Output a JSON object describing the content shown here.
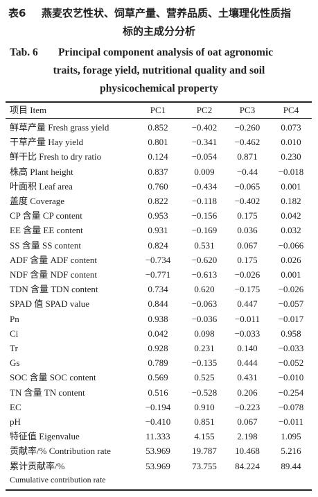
{
  "header": {
    "label_cn": "表6",
    "title_cn_lines": [
      "燕麦农艺性状、饲草产量、营养品质、土壤理化性质指",
      "标的主成分分析"
    ],
    "label_en": "Tab. 6",
    "title_en_lines": [
      "Principal component analysis of oat agronomic",
      "traits, forage yield, nutritional quality and soil",
      "physicochemical property"
    ]
  },
  "table": {
    "columns": [
      "项目 Item",
      "PC1",
      "PC2",
      "PC3",
      "PC4"
    ],
    "rows": [
      [
        "鲜草产量 Fresh grass yield",
        "0.852",
        "−0.402",
        "−0.260",
        "0.073"
      ],
      [
        "干草产量 Hay yield",
        "0.801",
        "−0.341",
        "−0.462",
        "0.010"
      ],
      [
        "鲜干比 Fresh to dry ratio",
        "0.124",
        "−0.054",
        "0.871",
        "0.230"
      ],
      [
        "株高 Plant height",
        "0.837",
        "0.009",
        "−0.44",
        "−0.018"
      ],
      [
        "叶面积 Leaf area",
        "0.760",
        "−0.434",
        "−0.065",
        "0.001"
      ],
      [
        "盖度 Coverage",
        "0.822",
        "−0.118",
        "−0.402",
        "0.182"
      ],
      [
        "CP 含量 CP content",
        "0.953",
        "−0.156",
        "0.175",
        "0.042"
      ],
      [
        "EE 含量 EE content",
        "0.931",
        "−0.169",
        "0.036",
        "0.032"
      ],
      [
        "SS 含量 SS content",
        "0.824",
        "0.531",
        "0.067",
        "−0.066"
      ],
      [
        "ADF 含量 ADF content",
        "−0.734",
        "−0.620",
        "0.175",
        "0.026"
      ],
      [
        "NDF 含量 NDF content",
        "−0.771",
        "−0.613",
        "−0.026",
        "0.001"
      ],
      [
        "TDN 含量 TDN content",
        "0.734",
        "0.620",
        "−0.175",
        "−0.026"
      ],
      [
        "SPAD 值 SPAD value",
        "0.844",
        "−0.063",
        "0.447",
        "−0.057"
      ],
      [
        "Pn",
        "0.938",
        "−0.036",
        "−0.011",
        "−0.017"
      ],
      [
        "Ci",
        "0.042",
        "0.098",
        "−0.033",
        "0.958"
      ],
      [
        "Tr",
        "0.928",
        "0.231",
        "0.140",
        "−0.033"
      ],
      [
        "Gs",
        "0.789",
        "−0.135",
        "0.444",
        "−0.052"
      ],
      [
        "SOC 含量 SOC content",
        "0.569",
        "0.525",
        "0.431",
        "−0.010"
      ],
      [
        "TN 含量 TN content",
        "0.516",
        "−0.528",
        "0.206",
        "−0.254"
      ],
      [
        "EC",
        "−0.194",
        "0.910",
        "−0.223",
        "−0.078"
      ],
      [
        "pH",
        "−0.410",
        "0.851",
        "0.067",
        "−0.011"
      ],
      [
        "特征值 Eigenvalue",
        "11.333",
        "4.155",
        "2.198",
        "1.095"
      ],
      [
        "贡献率/% Contribution rate",
        "53.969",
        "19.787",
        "10.468",
        "5.216"
      ],
      [
        "累计贡献率/%",
        "53.969",
        "73.755",
        "84.224",
        "89.44"
      ]
    ],
    "last_row_label_line2": "Cumulative contribution rate"
  }
}
